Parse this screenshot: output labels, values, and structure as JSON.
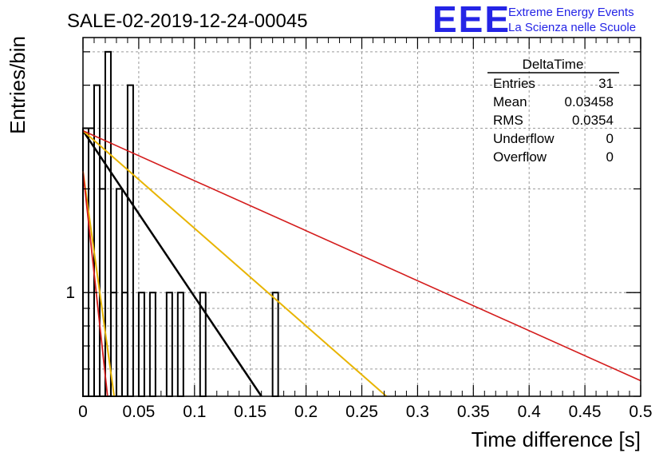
{
  "page": {
    "title": "SALE-02-2019-12-24-00045",
    "logo": {
      "mark": "EEE",
      "line1": "Extreme Energy Events",
      "line2": "La Scienza nelle Scuole",
      "color": "#2424e6"
    }
  },
  "stats_box": {
    "name": "DeltaTime",
    "rows": [
      {
        "label": "Entries",
        "value": "31"
      },
      {
        "label": "Mean",
        "value": "0.03458"
      },
      {
        "label": "RMS",
        "value": "0.0354"
      },
      {
        "label": "Underflow",
        "value": "0"
      },
      {
        "label": "Overflow",
        "value": "0"
      }
    ]
  },
  "chart_data": {
    "type": "bar",
    "title": "SALE-02-2019-12-24-00045",
    "xlabel": "Time difference [s]",
    "ylabel": "Entries/bin",
    "xlim": [
      0,
      0.5
    ],
    "ylim": [
      0.5,
      5.5
    ],
    "yscale": "log",
    "grid": true,
    "x_ticks": [
      "0",
      "0.05",
      "0.1",
      "0.15",
      "0.2",
      "0.25",
      "0.3",
      "0.35",
      "0.4",
      "0.45",
      "0.5"
    ],
    "x_tick_values": [
      0,
      0.05,
      0.1,
      0.15,
      0.2,
      0.25,
      0.3,
      0.35,
      0.4,
      0.45,
      0.5
    ],
    "y_ticks": [
      "1"
    ],
    "y_tick_values": [
      1
    ],
    "bin_width": 0.005,
    "bins": [
      {
        "x": 0.0,
        "count": 3
      },
      {
        "x": 0.005,
        "count": 3
      },
      {
        "x": 0.01,
        "count": 4
      },
      {
        "x": 0.015,
        "count": 2
      },
      {
        "x": 0.02,
        "count": 5
      },
      {
        "x": 0.025,
        "count": 1
      },
      {
        "x": 0.03,
        "count": 2
      },
      {
        "x": 0.035,
        "count": 1
      },
      {
        "x": 0.04,
        "count": 4
      },
      {
        "x": 0.045,
        "count": 0
      },
      {
        "x": 0.05,
        "count": 1
      },
      {
        "x": 0.06,
        "count": 1
      },
      {
        "x": 0.075,
        "count": 1
      },
      {
        "x": 0.085,
        "count": 1
      },
      {
        "x": 0.105,
        "count": 1
      },
      {
        "x": 0.17,
        "count": 1
      }
    ],
    "series": [
      {
        "color": "#000000",
        "width": 2.5,
        "points": [
          [
            0,
            2.95
          ],
          [
            0.16,
            0.5
          ]
        ]
      },
      {
        "color": "#e8b400",
        "width": 2.0,
        "points": [
          [
            0,
            2.95
          ],
          [
            0.272,
            0.5
          ]
        ]
      },
      {
        "color": "#d41c1c",
        "width": 1.6,
        "points": [
          [
            0,
            2.95
          ],
          [
            0.5,
            0.555
          ]
        ]
      },
      {
        "color": "#e8b400",
        "width": 2.0,
        "points": [
          [
            0,
            2.25
          ],
          [
            0.028,
            0.5
          ]
        ]
      },
      {
        "color": "#d41c1c",
        "width": 1.8,
        "points": [
          [
            0,
            2.25
          ],
          [
            0.022,
            0.5
          ]
        ]
      }
    ]
  }
}
